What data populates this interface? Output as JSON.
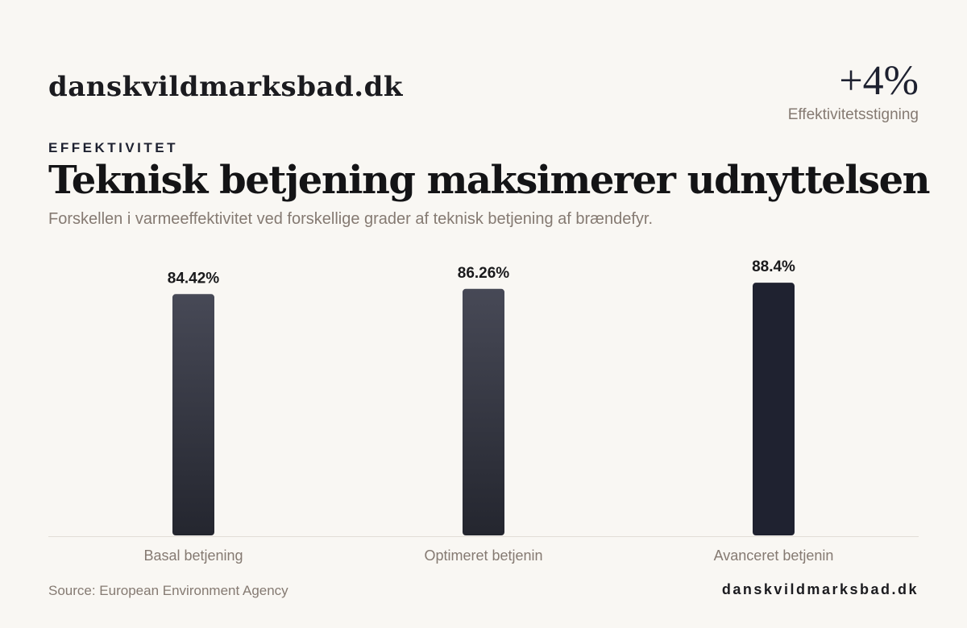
{
  "header": {
    "brand": "danskvildmarksbad.dk",
    "kpi_value": "+4%",
    "kpi_label": "Effektivitetsstigning",
    "eyebrow": "EFFEKTIVITET",
    "title": "Teknisk betjening maksimerer udnyttelsen",
    "subtitle": "Forskellen i varmeeffektivitet ved forskellige grader af teknisk betjening af brændefyr."
  },
  "footer": {
    "source": "Source: European Environment Agency",
    "brand": "danskvildmarksbad.dk"
  },
  "colors": {
    "bar_gradient_top": "#474956",
    "bar_gradient_bottom": "#24262f",
    "bar_highlight": "#1f2230",
    "baseline": "#e2ddd7",
    "category_label": "#857a72",
    "value_label": "#1a1a1c"
  },
  "chart_data": {
    "type": "bar",
    "title": "",
    "xlabel": "",
    "ylabel": "",
    "categories": [
      "Basal betjening",
      "Optimeret betjenin",
      "Avanceret betjenin"
    ],
    "values": [
      84.42,
      86.26,
      88.4
    ],
    "value_labels": [
      "84.42%",
      "86.26%",
      "88.4%"
    ],
    "highlight_index": 2,
    "ylim": [
      0,
      100
    ],
    "grid": false,
    "legend": "none"
  }
}
